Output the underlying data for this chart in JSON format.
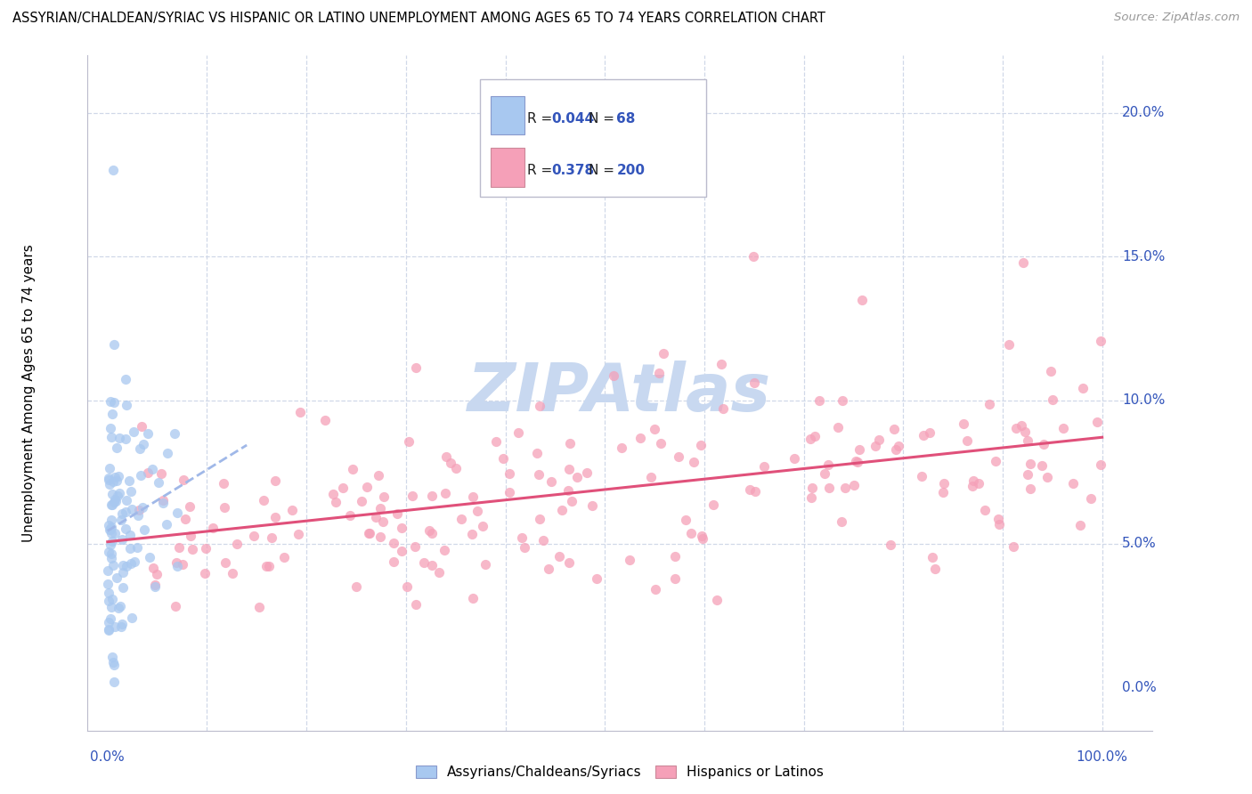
{
  "title": "ASSYRIAN/CHALDEAN/SYRIAC VS HISPANIC OR LATINO UNEMPLOYMENT AMONG AGES 65 TO 74 YEARS CORRELATION CHART",
  "source": "Source: ZipAtlas.com",
  "ylabel": "Unemployment Among Ages 65 to 74 years",
  "color_blue": "#a8c8f0",
  "color_pink": "#f5a0b8",
  "line_blue": "#a0b8e8",
  "line_pink": "#e0507a",
  "watermark": "ZIPAtlas",
  "watermark_color": "#c8d8f0",
  "label_assyrian": "Assyrians/Chaldeans/Syriacs",
  "label_hispanic": "Hispanics or Latinos",
  "r_blue": "0.044",
  "n_blue": "68",
  "r_pink": "0.378",
  "n_pink": "200",
  "ytick_vals": [
    0.0,
    5.0,
    10.0,
    15.0,
    20.0
  ],
  "ytick_labels": [
    "0.0%",
    "5.0%",
    "10.0%",
    "15.0%",
    "20.0%"
  ],
  "xlim": [
    -2,
    105
  ],
  "ylim": [
    -1.5,
    22.0
  ],
  "blue_seed": 42,
  "pink_seed": 77
}
